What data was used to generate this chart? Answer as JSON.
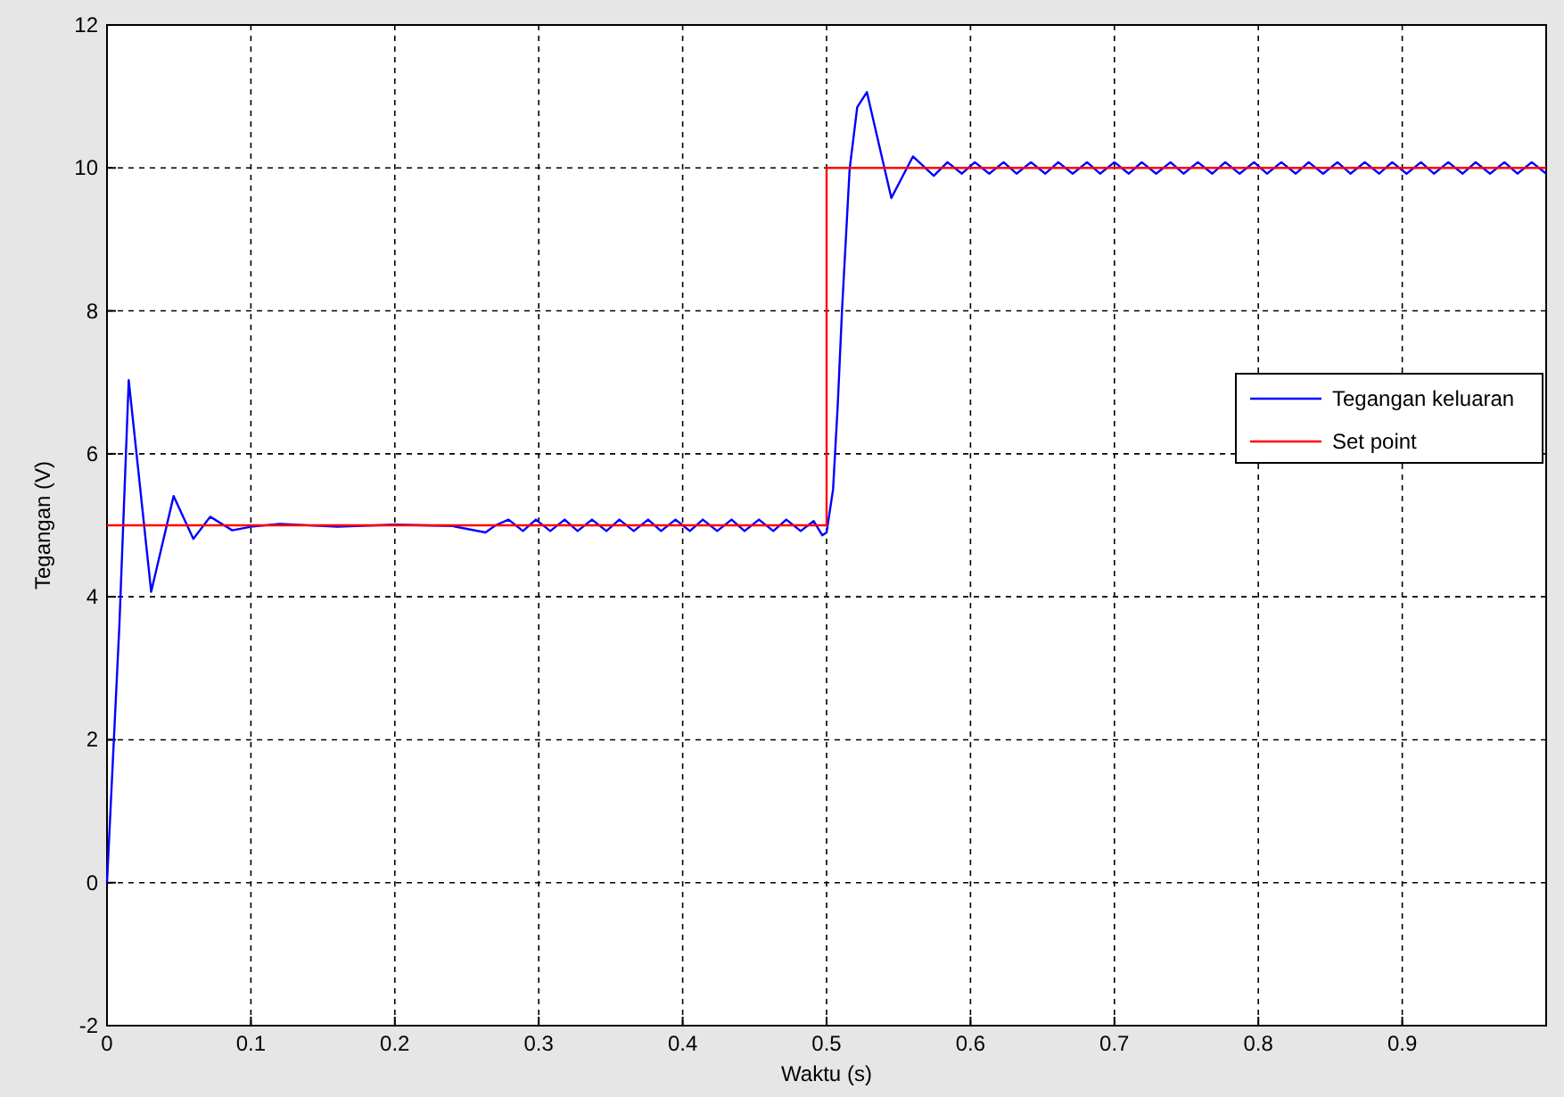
{
  "chart_data": {
    "type": "line",
    "xlabel": "Waktu (s)",
    "ylabel": "Tegangan (V)",
    "xlim": [
      0,
      1
    ],
    "ylim": [
      -2,
      12
    ],
    "xticks": [
      0,
      0.1,
      0.2,
      0.3,
      0.4,
      0.5,
      0.6,
      0.7,
      0.8,
      0.9
    ],
    "yticks": [
      -2,
      0,
      2,
      4,
      6,
      8,
      10,
      12
    ],
    "grid": true,
    "legend": "right",
    "line_style": "solid",
    "marker": "none",
    "series": [
      {
        "name": "Tegangan keluaran",
        "color": "#0000ff",
        "x": [
          0,
          0.0086,
          0.0151,
          0.0307,
          0.0463,
          0.06,
          0.0717,
          0.087,
          0.1,
          0.12,
          0.16,
          0.2,
          0.24,
          0.263,
          0.27,
          0.279,
          0.289,
          0.298,
          0.308,
          0.318,
          0.327,
          0.337,
          0.347,
          0.356,
          0.366,
          0.376,
          0.385,
          0.395,
          0.405,
          0.414,
          0.424,
          0.434,
          0.443,
          0.453,
          0.463,
          0.472,
          0.482,
          0.491,
          0.497,
          0.5,
          0.5045,
          0.5078,
          0.5107,
          0.516,
          0.5213,
          0.528,
          0.545,
          0.56,
          0.5745,
          0.584,
          0.594,
          0.603,
          0.613,
          0.623,
          0.632,
          0.642,
          0.652,
          0.661,
          0.671,
          0.681,
          0.69,
          0.7,
          0.71,
          0.719,
          0.729,
          0.739,
          0.748,
          0.758,
          0.768,
          0.777,
          0.787,
          0.797,
          0.806,
          0.816,
          0.826,
          0.835,
          0.845,
          0.855,
          0.864,
          0.874,
          0.884,
          0.893,
          0.903,
          0.913,
          0.922,
          0.932,
          0.942,
          0.951,
          0.961,
          0.971,
          0.98,
          0.99,
          1.0
        ],
        "values": [
          0,
          3.6,
          7.03,
          4.07,
          5.41,
          4.81,
          5.12,
          4.93,
          4.98,
          5.02,
          4.98,
          5.01,
          4.99,
          4.9,
          5.0,
          5.08,
          4.92,
          5.08,
          4.92,
          5.08,
          4.92,
          5.08,
          4.92,
          5.08,
          4.92,
          5.08,
          4.92,
          5.08,
          4.92,
          5.08,
          4.92,
          5.08,
          4.92,
          5.08,
          4.92,
          5.08,
          4.92,
          5.06,
          4.86,
          4.9,
          5.5,
          6.7,
          8.0,
          9.98,
          10.85,
          11.06,
          9.58,
          10.16,
          9.89,
          10.08,
          9.92,
          10.08,
          9.92,
          10.08,
          9.92,
          10.08,
          9.92,
          10.08,
          9.92,
          10.08,
          9.92,
          10.08,
          9.92,
          10.08,
          9.92,
          10.08,
          9.92,
          10.08,
          9.92,
          10.08,
          9.92,
          10.08,
          9.92,
          10.08,
          9.92,
          10.08,
          9.92,
          10.08,
          9.92,
          10.08,
          9.92,
          10.08,
          9.92,
          10.08,
          9.92,
          10.08,
          9.92,
          10.08,
          9.92,
          10.08,
          9.92,
          10.08,
          9.92
        ]
      },
      {
        "name": "Set point",
        "color": "#ff0000",
        "x": [
          0,
          0.5,
          0.5,
          1
        ],
        "values": [
          5,
          5,
          10,
          10
        ]
      }
    ]
  }
}
